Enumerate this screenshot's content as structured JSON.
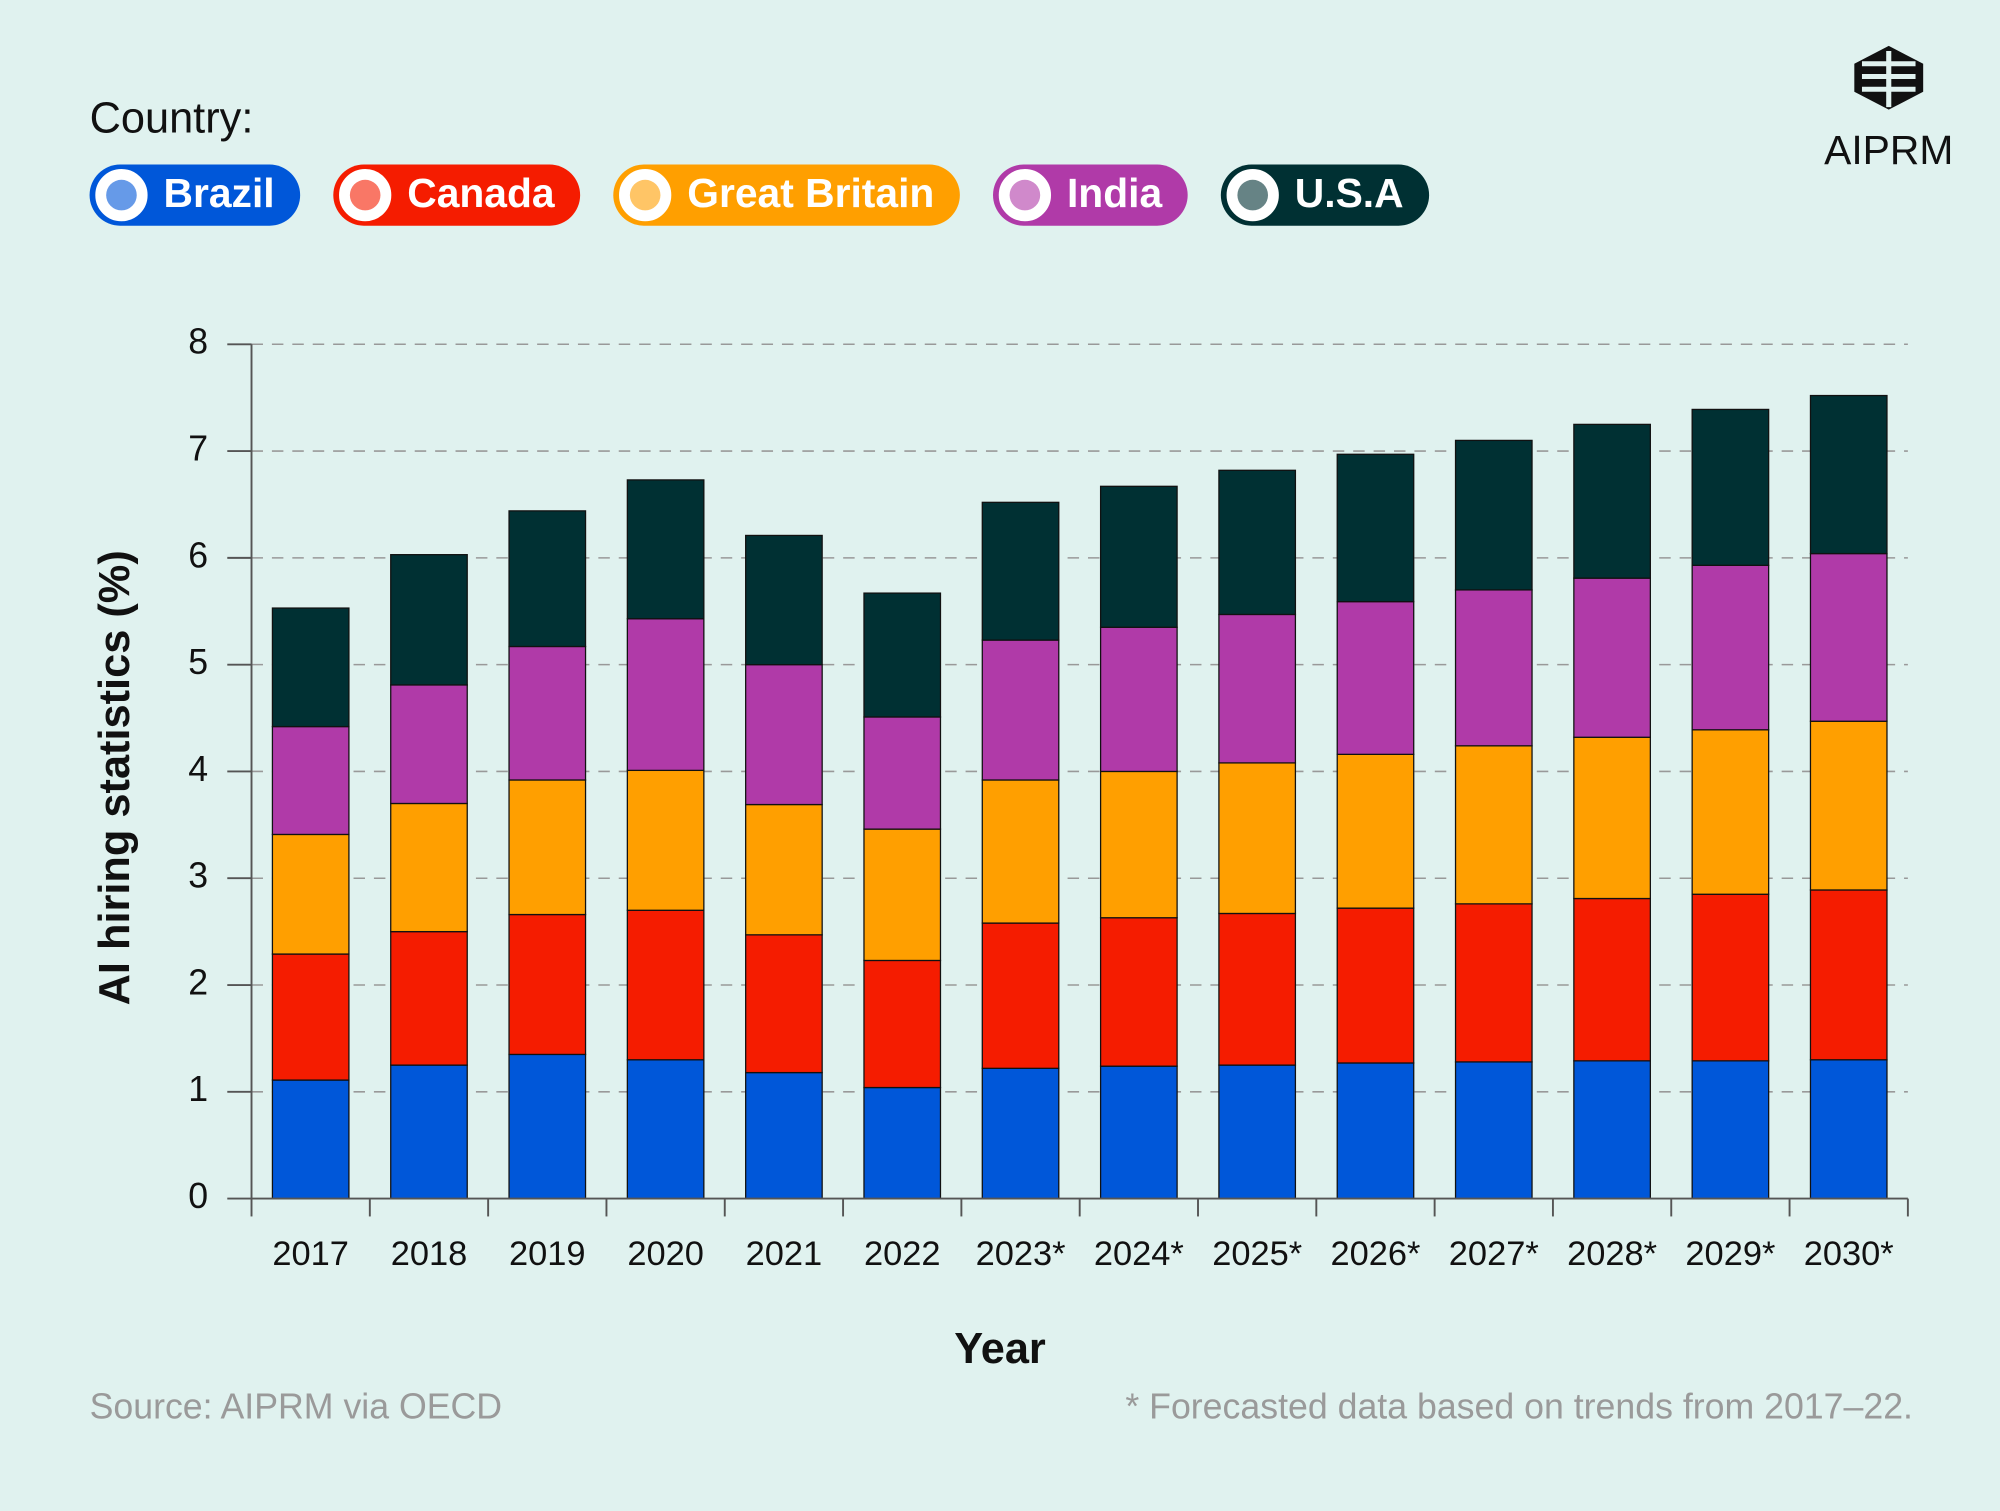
{
  "chart_data": {
    "type": "stacked_bar",
    "legend_title": "Country:",
    "brand": "AIPRM",
    "y_label": "AI hiring statistics (%)",
    "x_label": "Year",
    "source": "Source: AIPRM via OECD",
    "note": "* Forecasted data based on trends from 2017–22.",
    "categories": [
      "2017",
      "2018",
      "2019",
      "2020",
      "2021",
      "2022",
      "2023*",
      "2024*",
      "2025*",
      "2026*",
      "2027*",
      "2028*",
      "2029*",
      "2030*"
    ],
    "series": [
      {
        "name": "Brazil",
        "color": "#0057d9",
        "values": [
          1.11,
          1.25,
          1.35,
          1.3,
          1.18,
          1.04,
          1.22,
          1.24,
          1.25,
          1.27,
          1.28,
          1.29,
          1.29,
          1.3
        ]
      },
      {
        "name": "Canada",
        "color": "#f51c00",
        "values": [
          1.18,
          1.25,
          1.31,
          1.4,
          1.29,
          1.19,
          1.36,
          1.39,
          1.42,
          1.45,
          1.48,
          1.52,
          1.56,
          1.59
        ]
      },
      {
        "name": "Great Britain",
        "color": "#ff9f00",
        "values": [
          1.12,
          1.2,
          1.26,
          1.31,
          1.22,
          1.23,
          1.34,
          1.37,
          1.41,
          1.44,
          1.48,
          1.51,
          1.54,
          1.58
        ]
      },
      {
        "name": "India",
        "color": "#b03aa8",
        "values": [
          1.01,
          1.11,
          1.25,
          1.42,
          1.31,
          1.05,
          1.31,
          1.35,
          1.39,
          1.43,
          1.46,
          1.49,
          1.54,
          1.57
        ]
      },
      {
        "name": "U.S.A",
        "color": "#003033",
        "values": [
          1.11,
          1.22,
          1.27,
          1.3,
          1.21,
          1.16,
          1.29,
          1.32,
          1.35,
          1.38,
          1.4,
          1.44,
          1.46,
          1.48
        ]
      }
    ],
    "ylim": [
      0,
      8
    ],
    "yticks": [
      0,
      1,
      2,
      3,
      4,
      5,
      6,
      7,
      8
    ],
    "grid": true
  }
}
